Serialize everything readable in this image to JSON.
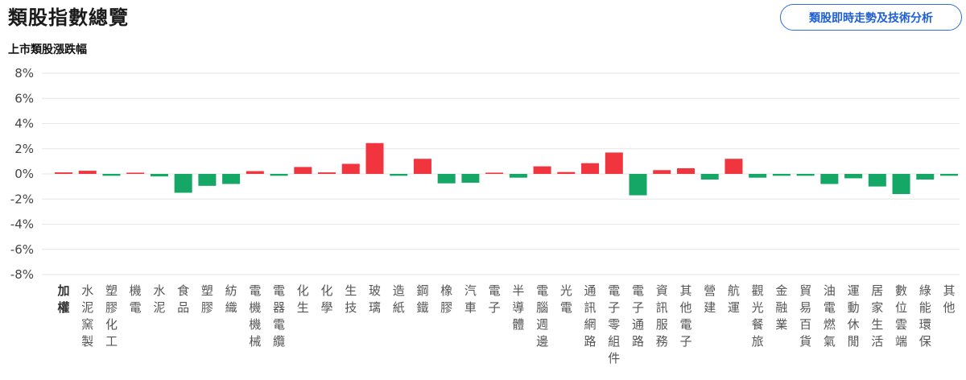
{
  "header": {
    "title": "類股指數總覽",
    "analysis_button": "類股即時走勢及技術分析"
  },
  "chart_data": {
    "type": "bar",
    "title": "上市類股漲跌幅",
    "xlabel": "",
    "ylabel": "",
    "ylim": [
      -8,
      8
    ],
    "yticks": [
      8,
      6,
      4,
      2,
      0,
      -2,
      -4,
      -6,
      -8
    ],
    "ytick_labels": [
      "8%",
      "6%",
      "4%",
      "2%",
      "0%",
      "-2%",
      "-4%",
      "-6%",
      "-8%"
    ],
    "grid": true,
    "colors": {
      "up": "#f0353f",
      "down": "#14a765",
      "grid": "#e6e6e6"
    },
    "categories": [
      "加權",
      "水泥窯製",
      "塑膠化工",
      "機電",
      "水泥",
      "食品",
      "塑膠",
      "紡織",
      "電機機械",
      "電器電纜",
      "化生",
      "化學",
      "生技",
      "玻璃",
      "造紙",
      "鋼鐵",
      "橡膠",
      "汽車",
      "電子",
      "半導體",
      "電腦週邊",
      "光電",
      "通訊網路",
      "電子零組件",
      "電子通路",
      "資訊服務",
      "其他電子",
      "營建",
      "航運",
      "觀光餐旅",
      "金融業",
      "貿易百貨",
      "油電燃氣",
      "運動休閒",
      "居家生活",
      "數位雲端",
      "綠能環保",
      "其他"
    ],
    "values": [
      0.12,
      0.25,
      -0.15,
      0.1,
      -0.2,
      -1.5,
      -0.95,
      -0.8,
      0.22,
      -0.15,
      0.55,
      0.12,
      0.8,
      2.45,
      -0.15,
      1.2,
      -0.75,
      -0.7,
      0.1,
      -0.3,
      0.6,
      0.15,
      0.85,
      1.7,
      -1.7,
      0.3,
      0.45,
      -0.45,
      1.2,
      -0.3,
      -0.15,
      -0.15,
      -0.8,
      -0.35,
      -1.0,
      -1.6,
      -0.45,
      -0.15
    ]
  }
}
